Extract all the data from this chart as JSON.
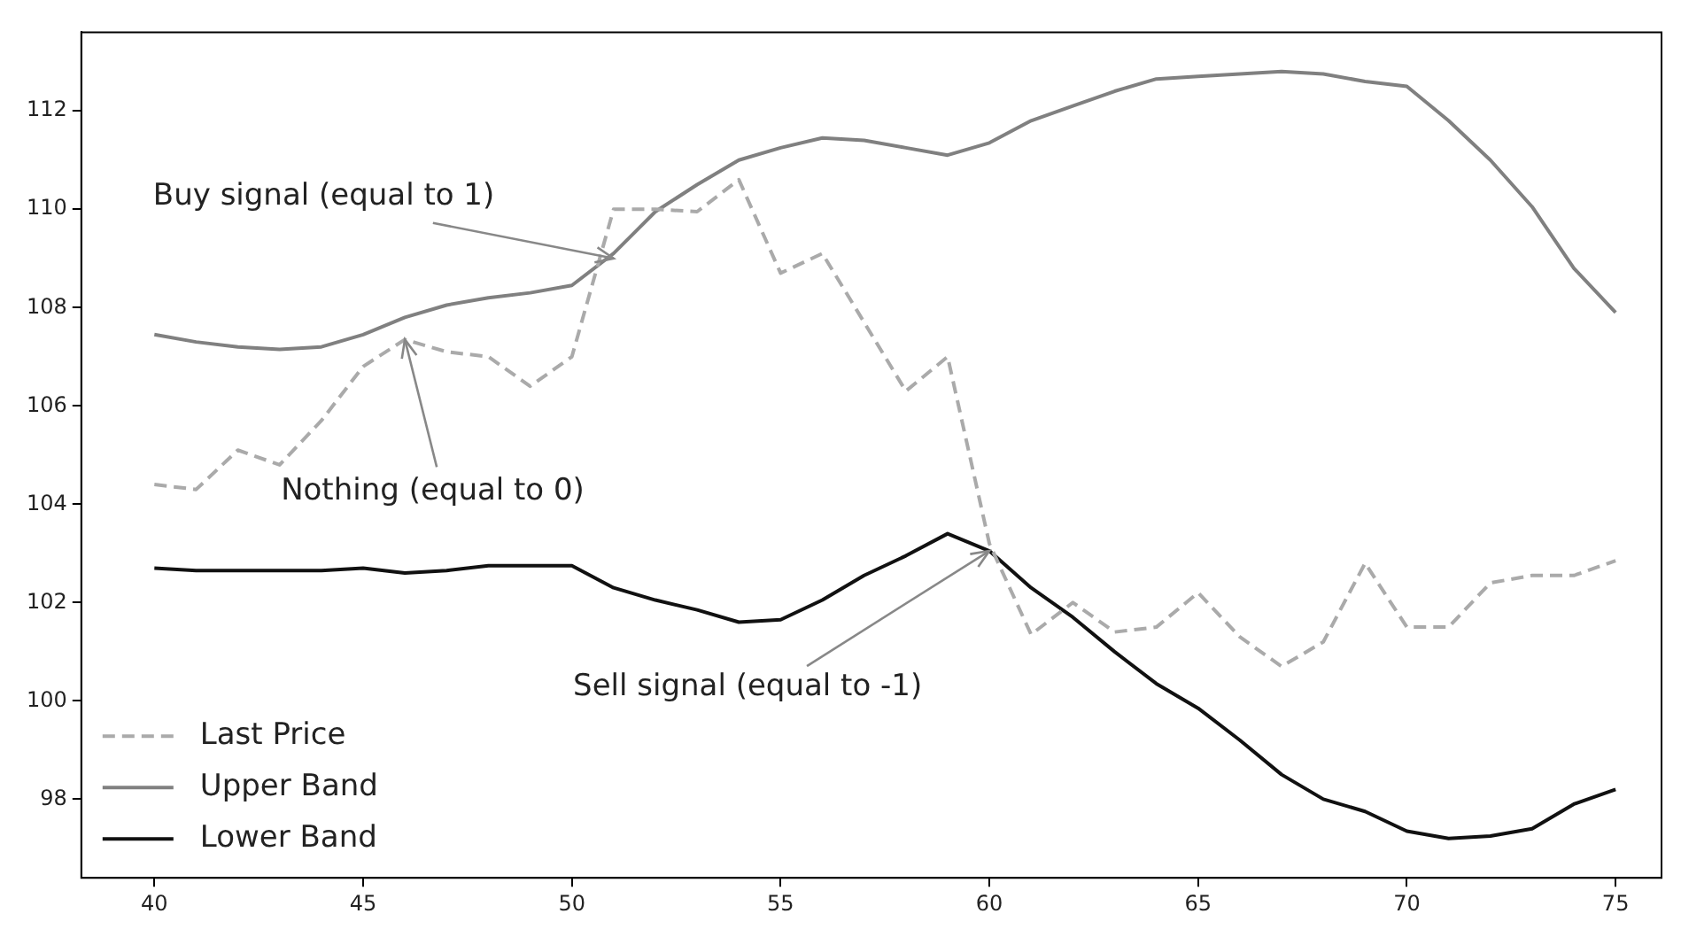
{
  "chart_data": {
    "type": "line",
    "x": [
      40,
      41,
      42,
      43,
      44,
      45,
      46,
      47,
      48,
      49,
      50,
      51,
      52,
      53,
      54,
      55,
      56,
      57,
      58,
      59,
      60,
      61,
      62,
      63,
      64,
      65,
      66,
      67,
      68,
      69,
      70,
      71,
      72,
      73,
      74,
      75
    ],
    "series": [
      {
        "name": "Last Price",
        "color": "#aaaaaa",
        "line_style": "dashed",
        "values": [
          104.4,
          104.3,
          105.1,
          104.8,
          105.7,
          106.8,
          107.35,
          107.1,
          107.0,
          106.4,
          107.0,
          110.0,
          110.0,
          109.95,
          110.6,
          108.7,
          109.1,
          107.7,
          106.3,
          107.0,
          103.2,
          101.35,
          102.0,
          101.4,
          101.5,
          102.2,
          101.3,
          100.7,
          101.2,
          102.8,
          101.5,
          101.5,
          102.4,
          102.55,
          102.55,
          102.85
        ]
      },
      {
        "name": "Upper Band",
        "color": "#808080",
        "line_style": "solid",
        "values": [
          107.45,
          107.3,
          107.2,
          107.15,
          107.2,
          107.45,
          107.8,
          108.05,
          108.2,
          108.3,
          108.45,
          109.1,
          109.95,
          110.5,
          111.0,
          111.25,
          111.45,
          111.4,
          111.25,
          111.1,
          111.35,
          111.8,
          112.1,
          112.4,
          112.65,
          112.7,
          112.75,
          112.8,
          112.75,
          112.6,
          112.5,
          111.8,
          111.0,
          110.05,
          108.8,
          107.9
        ]
      },
      {
        "name": "Lower Band",
        "color": "#111111",
        "line_style": "solid",
        "values": [
          102.7,
          102.65,
          102.65,
          102.65,
          102.65,
          102.7,
          102.6,
          102.65,
          102.75,
          102.75,
          102.75,
          102.3,
          102.05,
          101.85,
          101.6,
          101.65,
          102.05,
          102.55,
          102.95,
          103.4,
          103.05,
          102.3,
          101.7,
          101.0,
          100.35,
          99.85,
          99.2,
          98.5,
          98.0,
          97.75,
          97.35,
          97.2,
          97.25,
          97.4,
          97.9,
          98.2
        ]
      }
    ],
    "annotations": [
      {
        "text": "Buy signal (equal to 1)",
        "x": 51,
        "y": 109.0
      },
      {
        "text": "Nothing (equal to 0)",
        "x": 46,
        "y": 107.35
      },
      {
        "text": "Sell signal (equal to -1)",
        "x": 60,
        "y": 103.05
      }
    ],
    "xlim": [
      38.25,
      76.1
    ],
    "xticks": [
      40,
      45,
      50,
      55,
      60,
      65,
      70,
      75
    ],
    "ylim": [
      96.4,
      113.6
    ],
    "yticks": [
      98,
      100,
      102,
      104,
      106,
      108,
      110,
      112
    ],
    "grid": false,
    "legend": "bottom left",
    "marker": "none"
  }
}
